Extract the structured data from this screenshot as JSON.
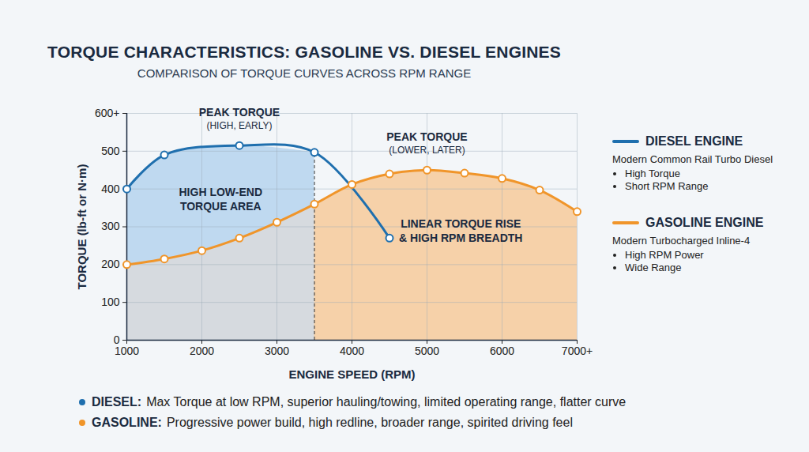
{
  "chart_data": {
    "type": "line",
    "title": "TORQUE CHARACTERISTICS: GASOLINE VS. DIESEL ENGINES",
    "subtitle": "COMPARISON OF TORQUE CURVES ACROSS RPM RANGE",
    "x_label": "ENGINE SPEED (RPM)",
    "y_label": "TORQUE (lb-ft or N·m)",
    "xlim": [
      1000,
      7000
    ],
    "xticks": [
      1000,
      2000,
      3000,
      4000,
      5000,
      6000,
      {
        "value": 7000,
        "label": "7000+"
      }
    ],
    "ylim": [
      0,
      600
    ],
    "yticks": [
      0,
      100,
      200,
      300,
      400,
      500,
      {
        "value": 600,
        "label": "600+"
      }
    ],
    "grid": true,
    "legend": "right",
    "series": [
      {
        "name": "DIESEL ENGINE",
        "description": "Modern Common Rail Turbo Diesel",
        "features": [
          "High Torque",
          "Short RPM Range"
        ],
        "color": "#1f6fae",
        "marker": "circle",
        "x": [
          1000,
          1500,
          2500,
          3500,
          4500
        ],
        "values": [
          400,
          490,
          515,
          497,
          270
        ]
      },
      {
        "name": "GASOLINE ENGINE",
        "description": "Modern Turbocharged Inline-4",
        "features": [
          "High RPM Power",
          "Wide Range"
        ],
        "color": "#f0952a",
        "marker": "circle",
        "x": [
          1000,
          1500,
          2000,
          2500,
          3000,
          3500,
          4000,
          4500,
          5000,
          5500,
          6000,
          6500,
          7000
        ],
        "values": [
          200,
          215,
          237,
          270,
          312,
          360,
          412,
          440,
          450,
          442,
          428,
          397,
          340
        ]
      }
    ],
    "annotations": [
      {
        "lines": [
          "PEAK TORQUE",
          "(HIGH, EARLY)"
        ]
      },
      {
        "lines": [
          "HIGH LOW-END",
          "TORQUE AREA"
        ]
      },
      {
        "lines": [
          "PEAK TORQUE",
          "(LOWER, LATER)"
        ]
      },
      {
        "lines": [
          "LINEAR TORQUE RISE",
          "& HIGH RPM BREADTH"
        ]
      }
    ],
    "notes": [
      {
        "label": "DIESEL:",
        "text": "Max Torque at low RPM, superior hauling/towing, limited operating range, flatter curve"
      },
      {
        "label": "GASOLINE:",
        "text": "Progressive power build, high redline, broader range, spirited driving feel"
      }
    ]
  }
}
